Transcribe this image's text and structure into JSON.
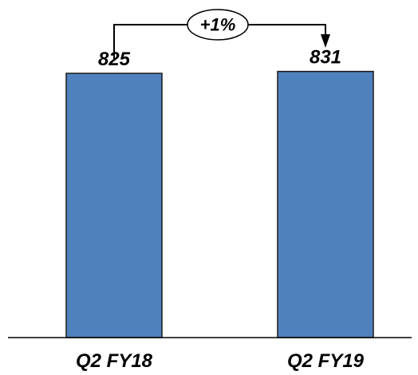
{
  "chart_data": {
    "type": "bar",
    "categories": [
      "Q2 FY18",
      "Q2 FY19"
    ],
    "values": [
      825,
      831
    ],
    "value_labels": [
      "825",
      "831"
    ],
    "ylim": [
      0,
      880
    ],
    "grid": false,
    "bar_color": "#4f81bd",
    "bar_edge_color": "#1a1a1a",
    "annotation": {
      "type": "change-arrow",
      "from": 0,
      "to": 1,
      "label": "+1%"
    }
  }
}
